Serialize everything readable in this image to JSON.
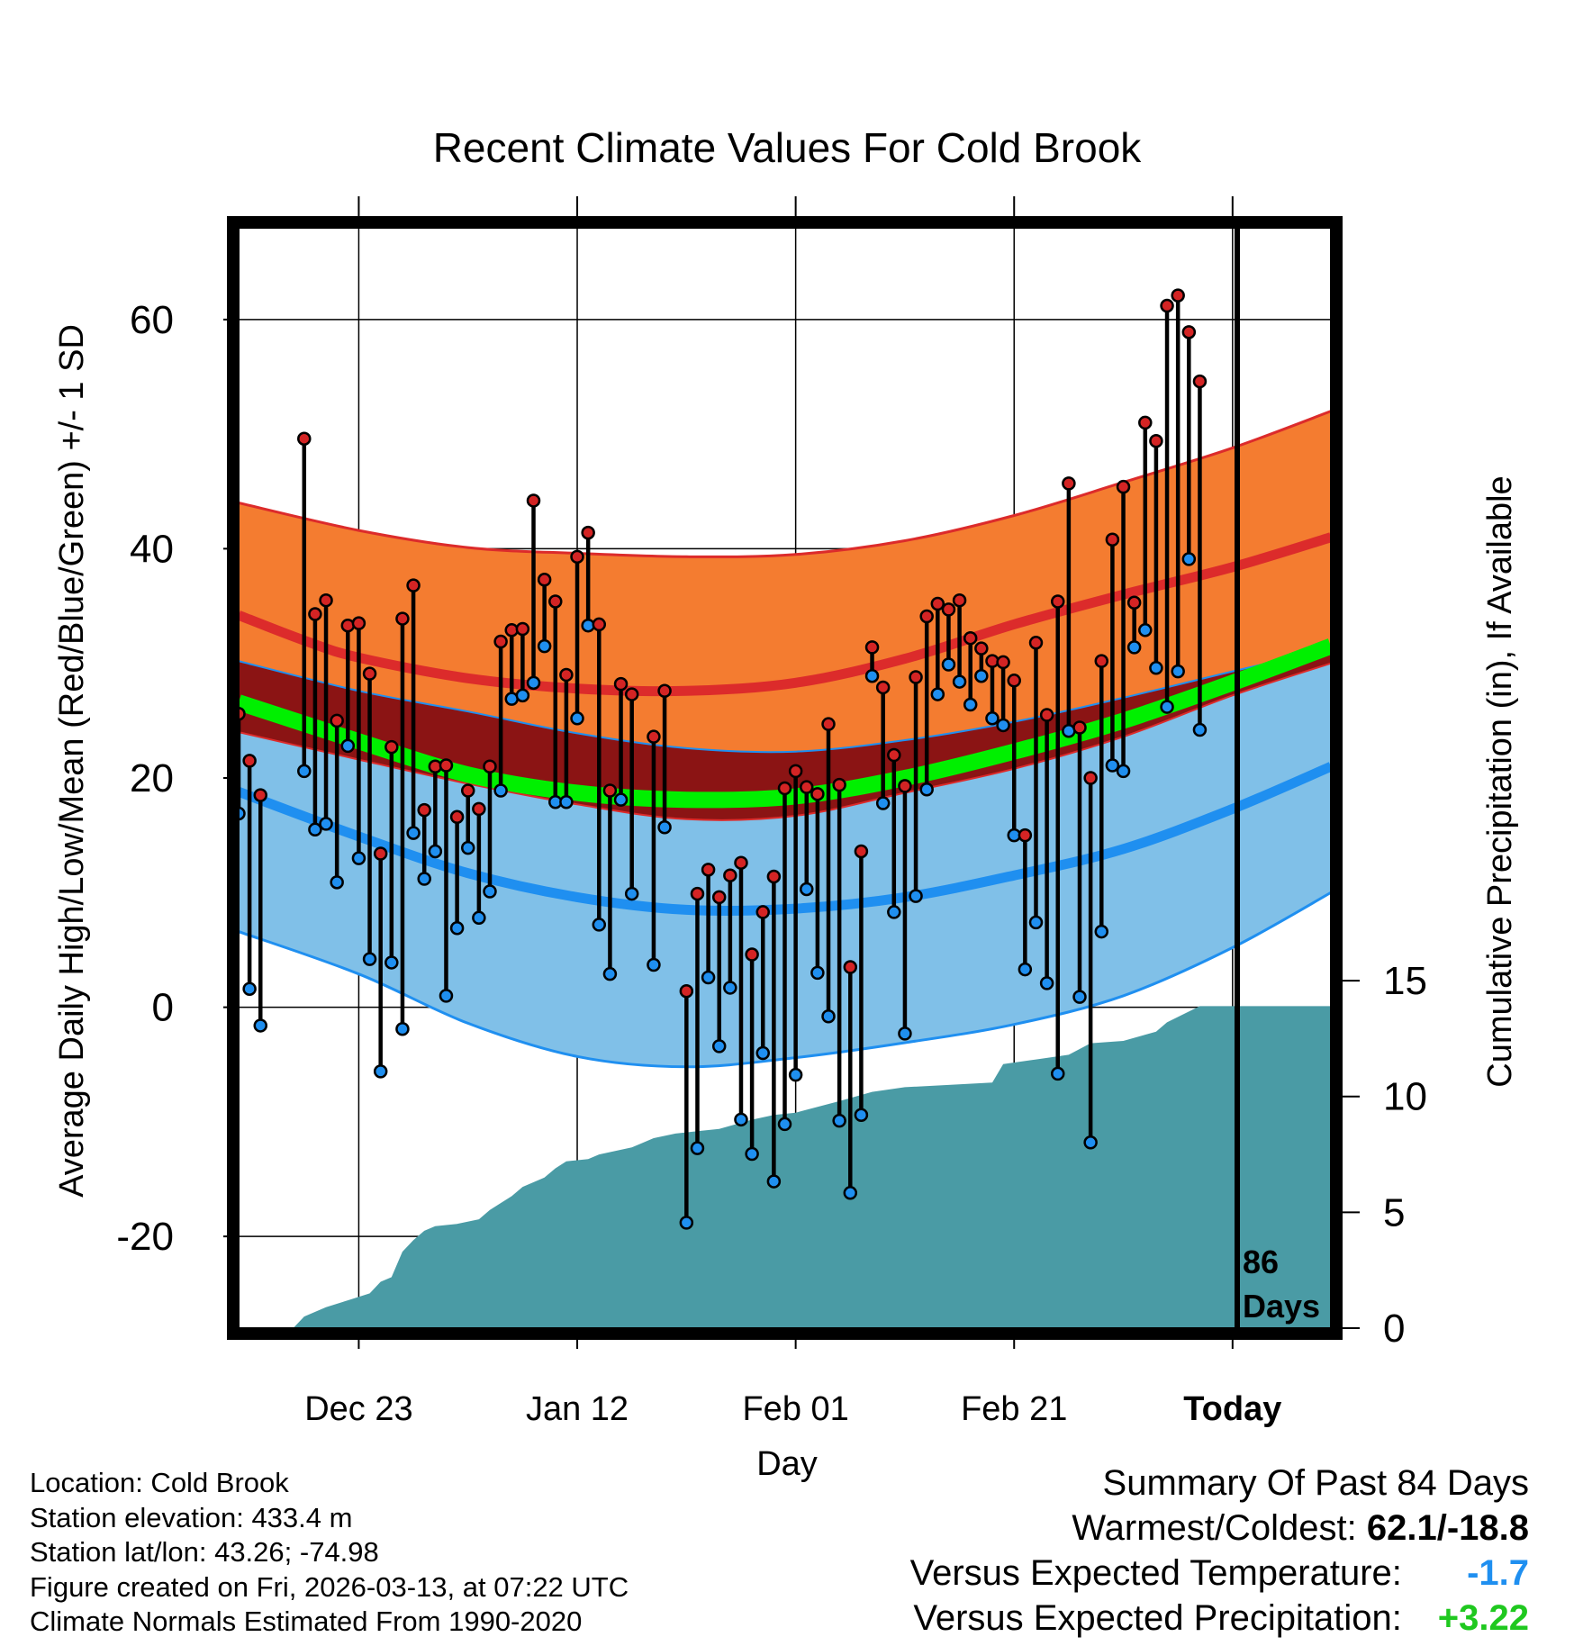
{
  "chart_data": {
    "type": "line",
    "title": "Recent Climate Values For Cold Brook",
    "xlabel": "Day",
    "ylabel": "Average Daily High/Low/Mean (Red/Blue/Green) +/- 1 SD",
    "y2label": "Cumulative Precipitation (in), If Available",
    "ylim": [
      -28,
      68
    ],
    "yticks": [
      "60",
      "40",
      "20",
      "0",
      "-20"
    ],
    "y2lim": [
      0,
      47.5
    ],
    "y2ticks": [
      "15",
      "10",
      "5",
      "0"
    ],
    "xlim": [
      -11,
      89
    ],
    "xticks": [
      {
        "day": 0,
        "label": "Dec 23"
      },
      {
        "day": 20,
        "label": "Jan 12"
      },
      {
        "day": 40,
        "label": "Feb 01"
      },
      {
        "day": 60,
        "label": "Feb 21"
      },
      {
        "day": 80,
        "label": "Today"
      }
    ],
    "today_day": 80,
    "today_label_line1": "86",
    "today_label_line2": "Days",
    "high_series": [
      25.6,
      21.5,
      18.5,
      null,
      null,
      null,
      49.6,
      34.3,
      35.5,
      25.0,
      33.3,
      33.5,
      29.1,
      13.4,
      22.7,
      33.9,
      36.8,
      17.2,
      21.0,
      21.1,
      16.6,
      18.9,
      17.3,
      21.0,
      31.9,
      32.9,
      33.0,
      44.2,
      37.3,
      35.4,
      29.0,
      39.3,
      41.4,
      33.4,
      18.9,
      28.2,
      27.3,
      null,
      23.6,
      27.6,
      null,
      1.4,
      9.9,
      12.0,
      9.6,
      11.5,
      12.6,
      4.6,
      8.3,
      11.4,
      19.1,
      20.6,
      19.2,
      18.6,
      24.7,
      19.4,
      3.5,
      13.6,
      31.4,
      27.9,
      22.0,
      19.3,
      28.8,
      34.1,
      35.2,
      34.7,
      35.5,
      32.2,
      31.3,
      30.2,
      30.1,
      28.5,
      15.0,
      31.8,
      25.5,
      35.4,
      45.7,
      24.4,
      20.0,
      30.2,
      40.8,
      45.4,
      35.3,
      51.0,
      49.4,
      61.2,
      62.1,
      58.9,
      54.6
    ],
    "low_series": [
      16.9,
      1.6,
      -1.6,
      null,
      null,
      null,
      20.6,
      15.5,
      16.0,
      10.9,
      22.8,
      13.0,
      4.2,
      -5.6,
      3.9,
      -1.9,
      15.2,
      11.2,
      13.6,
      1.0,
      6.9,
      13.9,
      7.8,
      10.1,
      18.9,
      26.9,
      27.2,
      28.3,
      31.5,
      17.9,
      17.9,
      25.2,
      33.3,
      7.2,
      2.9,
      18.1,
      9.9,
      null,
      3.7,
      15.7,
      null,
      -18.8,
      -12.3,
      2.6,
      -3.4,
      1.7,
      -9.8,
      -12.8,
      -4.0,
      -15.2,
      -10.2,
      -5.9,
      10.3,
      3.0,
      -0.8,
      -9.9,
      -16.2,
      -9.4,
      28.9,
      17.8,
      8.3,
      -2.3,
      9.7,
      19.0,
      27.3,
      29.9,
      28.4,
      26.4,
      28.9,
      25.2,
      24.6,
      15.0,
      3.3,
      7.4,
      2.1,
      -5.8,
      24.1,
      0.9,
      -11.8,
      6.6,
      21.1,
      20.6,
      31.4,
      32.9,
      29.6,
      26.2,
      29.3,
      39.1,
      24.2
    ],
    "normal_high_mean": [
      [
        -11,
        34.2
      ],
      [
        -5,
        32.0
      ],
      [
        0,
        30.5
      ],
      [
        10,
        28.7
      ],
      [
        20,
        27.8
      ],
      [
        30,
        27.6
      ],
      [
        40,
        28.3
      ],
      [
        50,
        30.4
      ],
      [
        60,
        33.4
      ],
      [
        70,
        36.0
      ],
      [
        80,
        38.4
      ],
      [
        89,
        41.0
      ]
    ],
    "normal_high_upper": [
      [
        -11,
        44.0
      ],
      [
        0,
        41.6
      ],
      [
        10,
        40.1
      ],
      [
        20,
        39.6
      ],
      [
        30,
        39.3
      ],
      [
        40,
        39.5
      ],
      [
        50,
        40.7
      ],
      [
        60,
        42.9
      ],
      [
        70,
        45.8
      ],
      [
        80,
        48.8
      ],
      [
        89,
        52.0
      ]
    ],
    "normal_high_lower": [
      [
        -11,
        30.2
      ],
      [
        0,
        27.6
      ],
      [
        10,
        25.8
      ],
      [
        20,
        23.9
      ],
      [
        30,
        22.6
      ],
      [
        40,
        22.3
      ],
      [
        50,
        23.3
      ],
      [
        60,
        24.9
      ],
      [
        70,
        27.0
      ],
      [
        80,
        29.3
      ],
      [
        89,
        31.3
      ]
    ],
    "normal_low_mean": [
      [
        -11,
        18.8
      ],
      [
        0,
        14.9
      ],
      [
        10,
        11.7
      ],
      [
        20,
        9.6
      ],
      [
        30,
        8.5
      ],
      [
        40,
        8.6
      ],
      [
        50,
        9.6
      ],
      [
        60,
        11.5
      ],
      [
        70,
        13.8
      ],
      [
        80,
        17.3
      ],
      [
        89,
        21.0
      ]
    ],
    "normal_low_upper": [
      [
        -11,
        24.0
      ],
      [
        0,
        21.6
      ],
      [
        10,
        19.5
      ],
      [
        20,
        17.7
      ],
      [
        30,
        16.4
      ],
      [
        40,
        16.7
      ],
      [
        50,
        18.7
      ],
      [
        60,
        20.8
      ],
      [
        70,
        23.6
      ],
      [
        80,
        27.2
      ],
      [
        89,
        30.0
      ]
    ],
    "normal_low_lower": [
      [
        -11,
        6.6
      ],
      [
        0,
        2.9
      ],
      [
        10,
        -1.4
      ],
      [
        20,
        -4.3
      ],
      [
        30,
        -5.2
      ],
      [
        40,
        -4.4
      ],
      [
        50,
        -3.1
      ],
      [
        60,
        -1.5
      ],
      [
        70,
        1.0
      ],
      [
        80,
        5.2
      ],
      [
        89,
        10.0
      ]
    ],
    "normal_mean": [
      [
        -11,
        26.6
      ],
      [
        0,
        23.2
      ],
      [
        10,
        20.3
      ],
      [
        20,
        18.7
      ],
      [
        30,
        18.1
      ],
      [
        40,
        18.4
      ],
      [
        50,
        20.0
      ],
      [
        60,
        22.3
      ],
      [
        70,
        25.0
      ],
      [
        80,
        28.3
      ],
      [
        89,
        31.5
      ]
    ],
    "precip_cumulative": [
      [
        -11,
        0
      ],
      [
        -6,
        0
      ],
      [
        -5,
        0.5
      ],
      [
        -3,
        0.9
      ],
      [
        -1,
        1.2
      ],
      [
        1,
        1.5
      ],
      [
        2,
        2.0
      ],
      [
        3,
        2.2
      ],
      [
        4,
        3.3
      ],
      [
        5,
        3.8
      ],
      [
        6,
        4.2
      ],
      [
        7,
        4.4
      ],
      [
        9,
        4.5
      ],
      [
        11,
        4.7
      ],
      [
        12,
        5.1
      ],
      [
        14,
        5.7
      ],
      [
        15,
        6.1
      ],
      [
        17,
        6.5
      ],
      [
        18,
        6.9
      ],
      [
        19,
        7.2
      ],
      [
        21,
        7.3
      ],
      [
        22,
        7.5
      ],
      [
        23,
        7.6
      ],
      [
        25,
        7.8
      ],
      [
        27,
        8.2
      ],
      [
        29,
        8.4
      ],
      [
        31,
        8.5
      ],
      [
        33,
        8.6
      ],
      [
        36,
        9.0
      ],
      [
        38,
        9.2
      ],
      [
        40,
        9.3
      ],
      [
        44,
        9.8
      ],
      [
        47,
        10.2
      ],
      [
        50,
        10.4
      ],
      [
        54,
        10.5
      ],
      [
        58,
        10.6
      ],
      [
        59,
        11.4
      ],
      [
        62,
        11.6
      ],
      [
        65,
        11.8
      ],
      [
        67,
        12.3
      ],
      [
        70,
        12.4
      ],
      [
        73,
        12.8
      ],
      [
        74,
        13.2
      ],
      [
        77,
        13.9
      ],
      [
        80,
        13.9
      ],
      [
        89,
        13.9
      ]
    ]
  },
  "location_text": "Location: Cold Brook",
  "elevation_text": "Station elevation: 433.4 m",
  "latlon_text": "Station lat/lon: 43.26; -74.98",
  "created_text": "Figure created on Fri, 2026-03-13, at 07:22 UTC",
  "normals_text": "Climate Normals Estimated From 1990-2020",
  "summary": {
    "heading": "Summary Of Past 84 Days",
    "warm_label": "Warmest/Coldest:",
    "warm_value": "62.1/-18.8",
    "temp_label": "Versus Expected Temperature:",
    "temp_value": "-1.7",
    "precip_label": "Versus Expected Precipitation:",
    "precip_value": "+3.22"
  },
  "colors": {
    "high_band": "#f47c30",
    "high_line": "#dc2b2b",
    "low_band": "#80c0e8",
    "low_line": "#1f8ff0",
    "mean_line": "#00f000",
    "overlap": "#8b1414",
    "precip": "#4a9ba5",
    "temp_value": "#1f8ff0",
    "precip_value": "#1fc81f"
  }
}
